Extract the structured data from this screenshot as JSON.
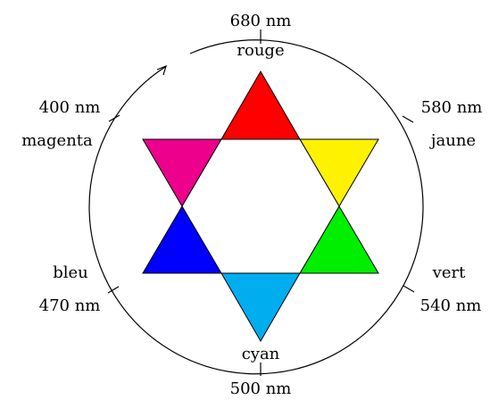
{
  "colors": {
    "rouge": "#FF0000",
    "jaune": "#FFF200",
    "vert": "#00EE00",
    "cyan": "#00AEEF",
    "bleu": "#0000FF",
    "magenta": "#EC008C",
    "outline": "#000000",
    "background": "#FFFFFF"
  },
  "labels": {
    "rouge": {
      "name": "rouge",
      "wavelength": "680 nm"
    },
    "jaune": {
      "name": "jaune",
      "wavelength": "580 nm"
    },
    "vert": {
      "name": "vert",
      "wavelength": "540 nm"
    },
    "cyan": {
      "name": "cyan",
      "wavelength": "500 nm"
    },
    "bleu": {
      "name": "bleu",
      "wavelength": "470 nm"
    },
    "magenta": {
      "name": "magenta",
      "wavelength": "400 nm"
    }
  },
  "arrow_direction": "counterclockwise"
}
